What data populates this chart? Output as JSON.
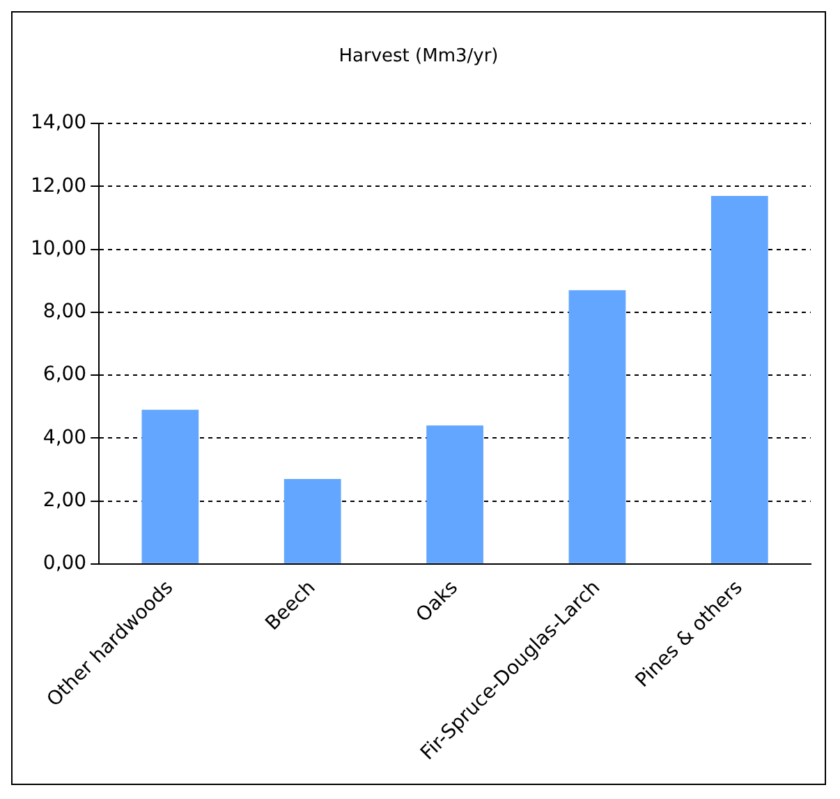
{
  "chart_data": {
    "type": "bar",
    "title": "Harvest (Mm3/yr)",
    "categories": [
      "Other hardwoods",
      "Beech",
      "Oaks",
      "Fir-Spruce-Douglas-Larch",
      "Pines & others"
    ],
    "values": [
      4.9,
      2.7,
      4.4,
      8.7,
      11.7
    ],
    "color": "#62a6ff",
    "ylim": [
      0,
      14
    ],
    "yticks": [
      {
        "value": 0,
        "label": "0,00"
      },
      {
        "value": 2,
        "label": "2,00"
      },
      {
        "value": 4,
        "label": "4,00"
      },
      {
        "value": 6,
        "label": "6,00"
      },
      {
        "value": 8,
        "label": "8,00"
      },
      {
        "value": 10,
        "label": "10,00"
      },
      {
        "value": 12,
        "label": "12,00"
      },
      {
        "value": 14,
        "label": "14,00"
      }
    ],
    "grid": "y",
    "legend": false
  }
}
